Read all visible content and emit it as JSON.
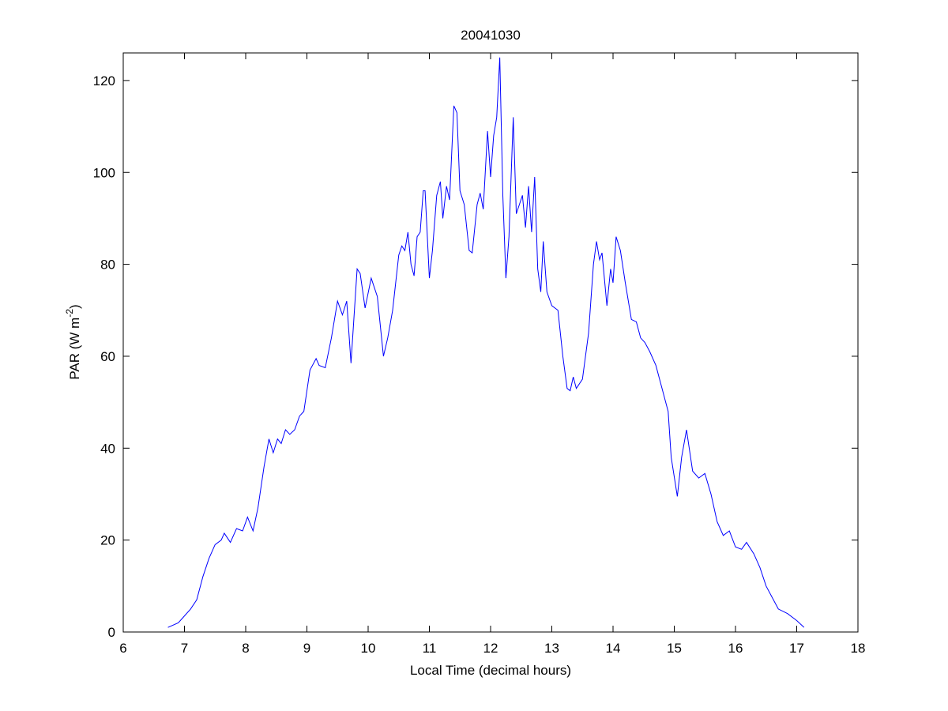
{
  "chart_data": {
    "type": "line",
    "title": "20041030",
    "xlabel": "Local Time (decimal hours)",
    "ylabel": [
      "PAR (W m",
      "-2",
      ")"
    ],
    "color": "#0000ff",
    "x": [
      6.73,
      6.9,
      7.0,
      7.1,
      7.2,
      7.3,
      7.4,
      7.5,
      7.6,
      7.65,
      7.75,
      7.85,
      7.95,
      8.03,
      8.12,
      8.2,
      8.3,
      8.38,
      8.45,
      8.52,
      8.58,
      8.65,
      8.72,
      8.8,
      8.88,
      8.95,
      9.05,
      9.15,
      9.2,
      9.3,
      9.4,
      9.5,
      9.58,
      9.65,
      9.72,
      9.82,
      9.87,
      9.95,
      10.05,
      10.15,
      10.25,
      10.32,
      10.4,
      10.5,
      10.55,
      10.6,
      10.65,
      10.7,
      10.75,
      10.8,
      10.85,
      10.9,
      10.93,
      11.0,
      11.05,
      11.12,
      11.18,
      11.22,
      11.28,
      11.33,
      11.4,
      11.45,
      11.5,
      11.57,
      11.65,
      11.7,
      11.78,
      11.83,
      11.88,
      11.95,
      12.0,
      12.05,
      12.1,
      12.15,
      12.2,
      12.25,
      12.3,
      12.37,
      12.42,
      12.47,
      12.52,
      12.57,
      12.62,
      12.67,
      12.72,
      12.77,
      12.82,
      12.86,
      12.92,
      13.0,
      13.1,
      13.18,
      13.25,
      13.3,
      13.35,
      13.4,
      13.5,
      13.6,
      13.68,
      13.73,
      13.78,
      13.82,
      13.9,
      13.96,
      14.0,
      14.05,
      14.12,
      14.2,
      14.3,
      14.38,
      14.45,
      14.52,
      14.6,
      14.7,
      14.8,
      14.9,
      14.95,
      15.05,
      15.12,
      15.2,
      15.3,
      15.4,
      15.5,
      15.6,
      15.7,
      15.8,
      15.9,
      16.0,
      16.1,
      16.18,
      16.3,
      16.4,
      16.5,
      16.6,
      16.7,
      16.85,
      17.0,
      17.12
    ],
    "values": [
      1,
      2,
      3.5,
      5,
      7,
      12,
      16,
      19,
      20,
      21.5,
      19.5,
      22.5,
      22,
      25,
      22,
      27,
      36,
      42,
      39,
      42,
      41,
      44,
      43,
      44,
      47,
      48,
      57,
      59.5,
      58,
      57.5,
      64,
      72,
      69,
      72,
      58.5,
      79,
      78,
      70.5,
      77,
      73,
      60,
      64,
      70,
      82,
      84,
      83,
      87,
      80,
      77.5,
      86,
      87,
      96,
      96,
      77,
      83,
      95,
      98,
      90,
      97,
      94,
      114.5,
      113,
      96,
      93,
      83,
      82.5,
      93,
      95.5,
      92,
      109,
      99,
      108,
      112,
      125,
      95,
      77,
      86,
      112,
      91,
      93,
      95,
      88,
      97,
      87,
      99,
      79,
      74,
      85,
      74,
      71,
      70,
      60,
      53,
      52.5,
      55.5,
      53,
      55,
      65,
      80,
      85,
      81,
      82.5,
      71,
      79,
      76,
      86,
      83,
      76,
      68,
      67.5,
      64,
      63,
      61,
      58,
      53,
      48,
      38,
      29.5,
      38,
      44,
      35,
      33.5,
      34.5,
      30,
      24,
      21,
      22,
      18.5,
      18,
      19.5,
      17,
      14,
      10,
      7.5,
      5,
      4,
      2.5,
      1
    ],
    "xlim": [
      6,
      18
    ],
    "xticks": [
      6,
      7,
      8,
      9,
      10,
      11,
      12,
      13,
      14,
      15,
      16,
      17,
      18
    ],
    "ylim": [
      0,
      126
    ],
    "yticks": [
      0,
      20,
      40,
      60,
      80,
      100,
      120
    ]
  }
}
